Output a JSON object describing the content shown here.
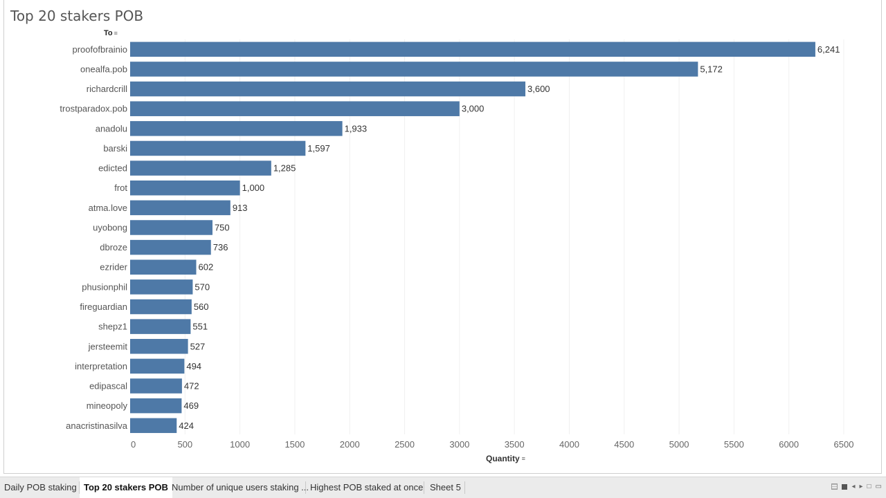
{
  "sheet_title": "Top 20 stakers POB",
  "row_header": "To",
  "col_header": "Quantity",
  "icons": {
    "sort": "sort-icon"
  },
  "colors": {
    "bar": "#4e79a7",
    "grid": "#f0f0f0"
  },
  "chart_data": {
    "type": "bar",
    "orientation": "horizontal",
    "title": "Top 20 stakers POB",
    "ylabel": "To",
    "xlabel": "Quantity",
    "xlim": [
      0,
      6500
    ],
    "xticks": [
      0,
      500,
      1000,
      1500,
      2000,
      2500,
      3000,
      3500,
      4000,
      4500,
      5000,
      5500,
      6000,
      6500
    ],
    "grid": true,
    "categories": [
      "proofofbrainio",
      "onealfa.pob",
      "richardcrill",
      "trostparadox.pob",
      "anadolu",
      "barski",
      "edicted",
      "frot",
      "atma.love",
      "uyobong",
      "dbroze",
      "ezrider",
      "phusionphil",
      "fireguardian",
      "shepz1",
      "jersteemit",
      "interpretation",
      "edipascal",
      "mineopoly",
      "anacristinasilva"
    ],
    "values": [
      6241,
      5172,
      3600,
      3000,
      1933,
      1597,
      1285,
      1000,
      913,
      750,
      736,
      602,
      570,
      560,
      551,
      527,
      494,
      472,
      469,
      424
    ],
    "value_labels": [
      "6,241",
      "5,172",
      "3,600",
      "3,000",
      "1,933",
      "1,597",
      "1,285",
      "1,000",
      "913",
      "750",
      "736",
      "602",
      "570",
      "560",
      "551",
      "527",
      "494",
      "472",
      "469",
      "424"
    ]
  },
  "tabs": [
    {
      "label": "Daily POB staking",
      "active": false
    },
    {
      "label": "Top 20 stakers POB",
      "active": true
    },
    {
      "label": "Number of unique users staking ...",
      "active": false
    },
    {
      "label": "Highest POB staked at once",
      "active": false
    },
    {
      "label": "Sheet 5",
      "active": false
    }
  ]
}
